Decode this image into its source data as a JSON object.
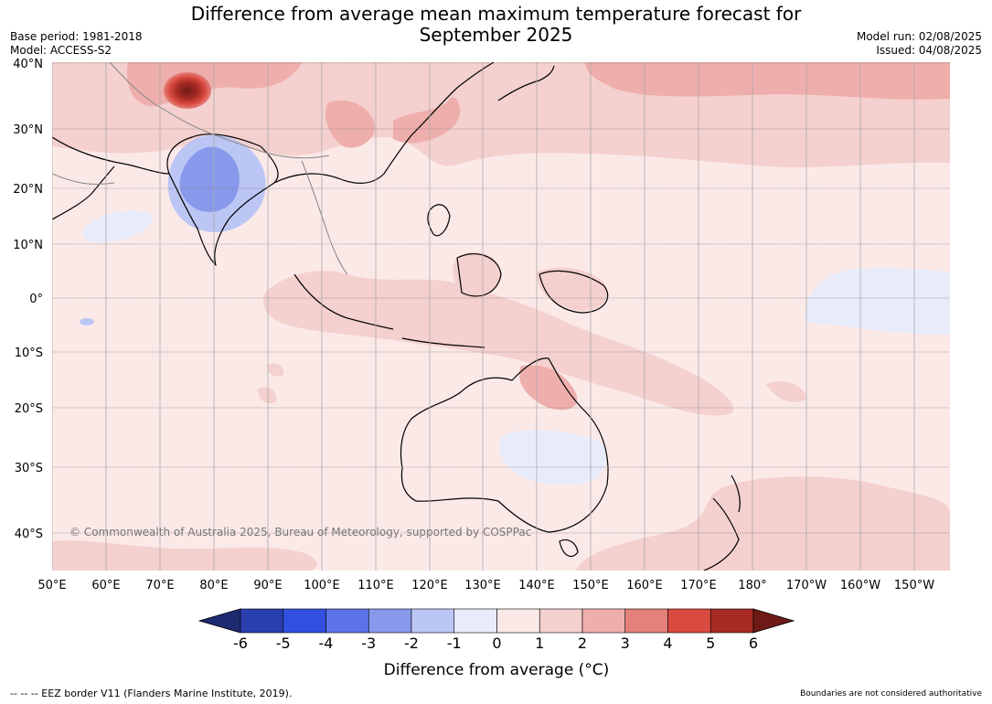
{
  "title_line1": "Difference from average mean maximum temperature forecast for",
  "title_line2": "September 2025",
  "base_period": "Base period: 1981-2018",
  "model": "Model: ACCESS-S2",
  "model_run": "Model run: 02/08/2025",
  "issued": "Issued: 04/08/2025",
  "copyright": "© Commonwealth of Australia 2025, Bureau of Meteorology, supported by COSPPac",
  "lat_labels": [
    "40°N",
    "30°N",
    "20°N",
    "10°N",
    "0°",
    "10°S",
    "20°S",
    "30°S",
    "40°S"
  ],
  "lon_labels": [
    "50°E",
    "60°E",
    "70°E",
    "80°E",
    "90°E",
    "100°E",
    "110°E",
    "120°E",
    "130°E",
    "140°E",
    "150°E",
    "160°E",
    "170°E",
    "180°",
    "170°W",
    "160°W",
    "150°W"
  ],
  "colorbar": {
    "ticks": [
      "-6",
      "-5",
      "-4",
      "-3",
      "-2",
      "-1",
      "0",
      "1",
      "2",
      "3",
      "4",
      "5",
      "6"
    ],
    "label": "Difference from average (°C)",
    "under_color": "#1f2b70",
    "over_color": "#6e1a16",
    "colors": [
      "#2a3fae",
      "#3150e0",
      "#5b73e6",
      "#8899ec",
      "#bcc6f4",
      "#e8ecfa",
      "#fbe9e8",
      "#f4d0ce",
      "#eeaeac",
      "#e5807c",
      "#d94a40",
      "#a72b24"
    ]
  },
  "eez_note": "-- -- -- EEZ border V11 (Flanders Marine Institute, 2019).",
  "boundaries_note": "Boundaries are not considered authoritative"
}
